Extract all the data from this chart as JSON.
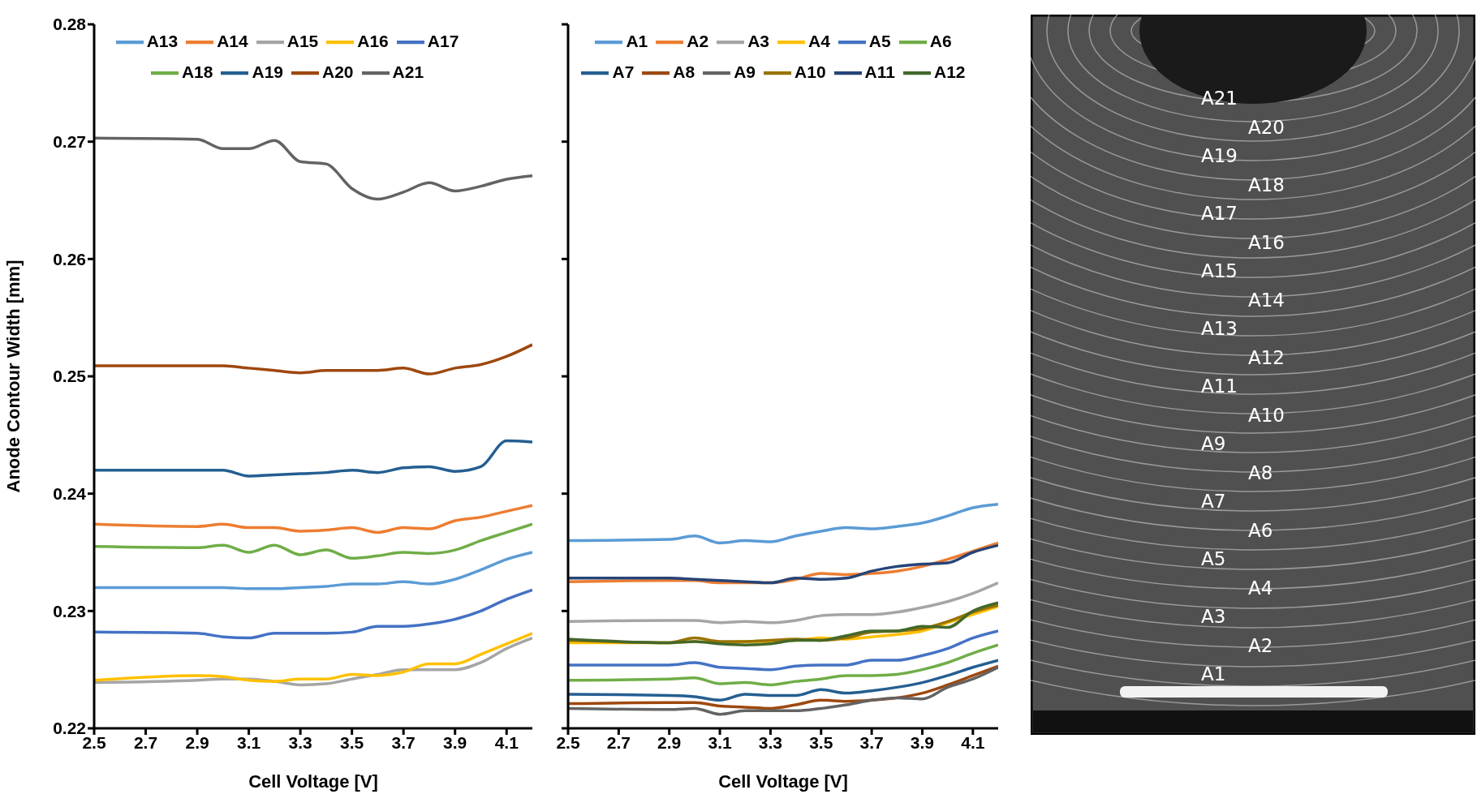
{
  "chart_data": [
    {
      "type": "line",
      "xlabel": "Cell Voltage [V]",
      "ylabel": "Anode Contour Width [mm]",
      "x": [
        2.5,
        2.9,
        3.0,
        3.1,
        3.2,
        3.3,
        3.4,
        3.5,
        3.6,
        3.7,
        3.8,
        3.9,
        4.0,
        4.1,
        4.2
      ],
      "xlim": [
        2.5,
        4.2
      ],
      "xticks": [
        2.5,
        2.7,
        2.9,
        3.1,
        3.3,
        3.5,
        3.7,
        3.9,
        4.1
      ],
      "ylim": [
        0.22,
        0.28
      ],
      "yticks": [
        0.22,
        0.23,
        0.24,
        0.25,
        0.26,
        0.27,
        0.28
      ],
      "legend": "top",
      "marker": "none",
      "line_style": "solid",
      "series": [
        {
          "name": "A13",
          "color": "#5b9bd5",
          "values": [
            0.232,
            0.232,
            0.232,
            0.2319,
            0.2319,
            0.232,
            0.2321,
            0.2323,
            0.2323,
            0.2325,
            0.2323,
            0.2327,
            0.2335,
            0.2344,
            0.235
          ]
        },
        {
          "name": "A14",
          "color": "#ed7d31",
          "values": [
            0.2374,
            0.2372,
            0.2374,
            0.2371,
            0.2371,
            0.2368,
            0.2369,
            0.2371,
            0.2367,
            0.2371,
            0.237,
            0.2377,
            0.238,
            0.2385,
            0.239
          ]
        },
        {
          "name": "A15",
          "color": "#a5a5a5",
          "values": [
            0.2239,
            0.2241,
            0.2242,
            0.2242,
            0.224,
            0.2237,
            0.2238,
            0.2242,
            0.2246,
            0.225,
            0.225,
            0.225,
            0.2256,
            0.2268,
            0.2277
          ]
        },
        {
          "name": "A16",
          "color": "#ffc000",
          "values": [
            0.2241,
            0.2245,
            0.2244,
            0.2241,
            0.224,
            0.2242,
            0.2242,
            0.2246,
            0.2245,
            0.2248,
            0.2255,
            0.2255,
            0.2263,
            0.2272,
            0.2281
          ]
        },
        {
          "name": "A17",
          "color": "#4472c4",
          "values": [
            0.2282,
            0.2281,
            0.2278,
            0.2277,
            0.2281,
            0.2281,
            0.2281,
            0.2282,
            0.2287,
            0.2287,
            0.2289,
            0.2293,
            0.23,
            0.231,
            0.2318
          ]
        },
        {
          "name": "A18",
          "color": "#70ad47",
          "values": [
            0.2355,
            0.2354,
            0.2356,
            0.235,
            0.2356,
            0.2348,
            0.2352,
            0.2345,
            0.2347,
            0.235,
            0.2349,
            0.2352,
            0.236,
            0.2367,
            0.2374
          ]
        },
        {
          "name": "A19",
          "color": "#255e91",
          "values": [
            0.242,
            0.242,
            0.242,
            0.2415,
            0.2416,
            0.2417,
            0.2418,
            0.242,
            0.2418,
            0.2422,
            0.2423,
            0.2419,
            0.2423,
            0.2445,
            0.2444
          ]
        },
        {
          "name": "A20",
          "color": "#9e480e",
          "values": [
            0.2509,
            0.2509,
            0.2509,
            0.2507,
            0.2505,
            0.2503,
            0.2505,
            0.2505,
            0.2505,
            0.2507,
            0.2502,
            0.2507,
            0.251,
            0.2517,
            0.2527
          ]
        },
        {
          "name": "A21",
          "color": "#636363",
          "values": [
            0.2703,
            0.2702,
            0.2694,
            0.2694,
            0.2701,
            0.2683,
            0.2681,
            0.266,
            0.2651,
            0.2657,
            0.2665,
            0.2658,
            0.2662,
            0.2668,
            0.2671
          ]
        }
      ]
    },
    {
      "type": "line",
      "xlabel": "Cell Voltage [V]",
      "x": [
        2.5,
        2.9,
        3.0,
        3.1,
        3.2,
        3.3,
        3.4,
        3.5,
        3.6,
        3.7,
        3.8,
        3.9,
        4.0,
        4.1,
        4.2
      ],
      "xlim": [
        2.5,
        4.2
      ],
      "xticks": [
        2.5,
        2.7,
        2.9,
        3.1,
        3.3,
        3.5,
        3.7,
        3.9,
        4.1
      ],
      "ylim": [
        0.22,
        0.28
      ],
      "yticks": [
        0.22,
        0.23,
        0.24,
        0.25,
        0.26,
        0.27,
        0.28
      ],
      "tick_labels": "x",
      "legend": "top",
      "marker": "none",
      "line_style": "solid",
      "series": [
        {
          "name": "A1",
          "color": "#5b9bd5",
          "values": [
            0.236,
            0.2361,
            0.2364,
            0.2358,
            0.236,
            0.2359,
            0.2364,
            0.2368,
            0.2371,
            0.237,
            0.2372,
            0.2375,
            0.2381,
            0.2388,
            0.2391
          ]
        },
        {
          "name": "A2",
          "color": "#ed7d31",
          "values": [
            0.2325,
            0.2326,
            0.2326,
            0.2324,
            0.2324,
            0.2324,
            0.2327,
            0.2332,
            0.2331,
            0.2332,
            0.2334,
            0.2338,
            0.2344,
            0.2351,
            0.2358
          ]
        },
        {
          "name": "A3",
          "color": "#a5a5a5",
          "values": [
            0.2291,
            0.2292,
            0.2292,
            0.229,
            0.2291,
            0.229,
            0.2292,
            0.2296,
            0.2297,
            0.2297,
            0.2299,
            0.2303,
            0.2308,
            0.2315,
            0.2324
          ]
        },
        {
          "name": "A4",
          "color": "#ffc000",
          "values": [
            0.2273,
            0.2273,
            0.2274,
            0.2273,
            0.2274,
            0.2274,
            0.2275,
            0.2277,
            0.2276,
            0.2278,
            0.228,
            0.2283,
            0.229,
            0.2297,
            0.2304
          ]
        },
        {
          "name": "A5",
          "color": "#4472c4",
          "values": [
            0.2254,
            0.2254,
            0.2256,
            0.2252,
            0.2251,
            0.225,
            0.2253,
            0.2254,
            0.2254,
            0.2258,
            0.2258,
            0.2262,
            0.2268,
            0.2277,
            0.2283
          ]
        },
        {
          "name": "A6",
          "color": "#70ad47",
          "values": [
            0.2241,
            0.2242,
            0.2243,
            0.2238,
            0.2239,
            0.2237,
            0.224,
            0.2242,
            0.2245,
            0.2245,
            0.2246,
            0.225,
            0.2256,
            0.2264,
            0.2271
          ]
        },
        {
          "name": "A7",
          "color": "#255e91",
          "values": [
            0.2229,
            0.2228,
            0.2227,
            0.2224,
            0.2229,
            0.2228,
            0.2228,
            0.2233,
            0.223,
            0.2232,
            0.2235,
            0.2239,
            0.2245,
            0.2252,
            0.2258
          ]
        },
        {
          "name": "A8",
          "color": "#9e480e",
          "values": [
            0.2221,
            0.2222,
            0.2222,
            0.2219,
            0.2218,
            0.2217,
            0.222,
            0.2224,
            0.2223,
            0.2224,
            0.2226,
            0.223,
            0.2237,
            0.2245,
            0.2253
          ]
        },
        {
          "name": "A9",
          "color": "#636363",
          "values": [
            0.2217,
            0.2216,
            0.2217,
            0.2212,
            0.2215,
            0.2215,
            0.2215,
            0.2217,
            0.222,
            0.2224,
            0.2226,
            0.2225,
            0.2235,
            0.2242,
            0.2252
          ]
        },
        {
          "name": "A10",
          "color": "#997300",
          "values": [
            0.2275,
            0.2273,
            0.2277,
            0.2274,
            0.2274,
            0.2275,
            0.2276,
            0.2275,
            0.2277,
            0.2282,
            0.2283,
            0.2285,
            0.2291,
            0.2299,
            0.2305
          ]
        },
        {
          "name": "A11",
          "color": "#264478",
          "values": [
            0.2328,
            0.2328,
            0.2327,
            0.2326,
            0.2325,
            0.2324,
            0.2328,
            0.2327,
            0.2328,
            0.2334,
            0.2338,
            0.234,
            0.2341,
            0.235,
            0.2356
          ]
        },
        {
          "name": "A12",
          "color": "#43682b",
          "values": [
            0.2276,
            0.2273,
            0.2274,
            0.2272,
            0.2271,
            0.2272,
            0.2275,
            0.2275,
            0.2279,
            0.2283,
            0.2283,
            0.2287,
            0.2286,
            0.23,
            0.2307
          ]
        }
      ]
    },
    {
      "type": "other",
      "annotations": [
        "A21",
        "A20",
        "A19",
        "A18",
        "A17",
        "A16",
        "A15",
        "A14",
        "A13",
        "A12",
        "A11",
        "A10",
        "A9",
        "A8",
        "A7",
        "A6",
        "A5",
        "A4",
        "A3",
        "A2",
        "A1"
      ]
    }
  ]
}
